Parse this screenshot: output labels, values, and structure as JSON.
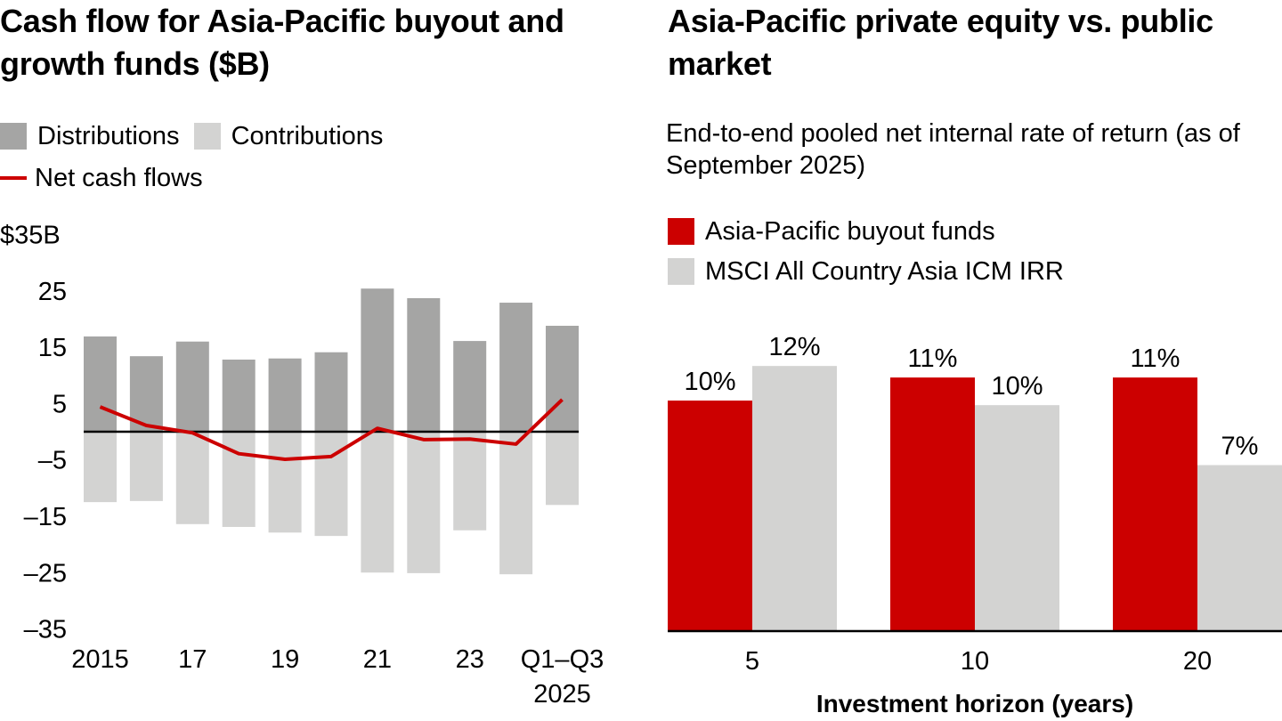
{
  "colors": {
    "distributions": "#a5a5a4",
    "contributions": "#d3d3d2",
    "net": "#cc0000",
    "buyout": "#cc0000",
    "msci": "#d3d3d2",
    "axis": "#000000"
  },
  "chart_data": [
    {
      "type": "bar",
      "title": "Cash flow for Asia-Pacific buyout and growth funds ($B)",
      "legend": [
        "Distributions",
        "Contributions",
        "Net cash flows"
      ],
      "legend_position": "top-left",
      "ylabel": "",
      "xlabel": "",
      "ylim": [
        -35,
        35
      ],
      "yticks": [
        35,
        25,
        15,
        5,
        -5,
        -15,
        -25,
        -35
      ],
      "ytick_labels": [
        "$35B",
        "25",
        "15",
        "5",
        "–5",
        "–15",
        "–25",
        "–35"
      ],
      "categories": [
        "2015",
        "2016",
        "2017",
        "2018",
        "2019",
        "2020",
        "2021",
        "2022",
        "2023",
        "2024",
        "Q1–Q3 2025"
      ],
      "xtick_labels": [
        {
          "index": 0,
          "lines": [
            "2015"
          ]
        },
        {
          "index": 2,
          "lines": [
            "17"
          ]
        },
        {
          "index": 4,
          "lines": [
            "19"
          ]
        },
        {
          "index": 6,
          "lines": [
            "21"
          ]
        },
        {
          "index": 8,
          "lines": [
            "23"
          ]
        },
        {
          "index": 10,
          "lines": [
            "Q1–Q3",
            "2025"
          ]
        }
      ],
      "series": [
        {
          "name": "Distributions",
          "type": "bar",
          "values": [
            16.9,
            13.4,
            16.0,
            12.8,
            13.0,
            14.1,
            25.4,
            23.7,
            16.1,
            22.9,
            18.8
          ]
        },
        {
          "name": "Contributions",
          "type": "bar",
          "values": [
            -12.5,
            -12.3,
            -16.4,
            -16.9,
            -17.9,
            -18.5,
            -25.0,
            -25.1,
            -17.5,
            -25.3,
            -13.0
          ]
        },
        {
          "name": "Net cash flows",
          "type": "line",
          "values": [
            4.4,
            1.1,
            -0.2,
            -3.9,
            -4.9,
            -4.4,
            0.6,
            -1.4,
            -1.3,
            -2.2,
            5.7
          ]
        }
      ],
      "grid": false
    },
    {
      "type": "bar",
      "title": "Asia-Pacific private equity vs. public market",
      "subtitle": "End-to-end pooled net internal rate of return (as of September 2025)",
      "legend": [
        "Asia-Pacific buyout funds",
        "MSCI All Country Asia ICM IRR"
      ],
      "legend_position": "top-left",
      "xlabel": "Investment horizon (years)",
      "ylabel": "",
      "categories": [
        "5",
        "10",
        "20"
      ],
      "series": [
        {
          "name": "Asia-Pacific buyout funds",
          "values": [
            10,
            11,
            11
          ],
          "estimated_values": [
            10.0,
            11.0,
            11.0
          ],
          "labels": [
            "10%",
            "11%",
            "11%"
          ]
        },
        {
          "name": "MSCI All Country Asia ICM IRR",
          "values": [
            12,
            10,
            7
          ],
          "estimated_values": [
            11.5,
            9.8,
            7.2
          ],
          "labels": [
            "12%",
            "10%",
            "7%"
          ]
        }
      ],
      "ylim": [
        0,
        12
      ],
      "grid": false
    }
  ]
}
